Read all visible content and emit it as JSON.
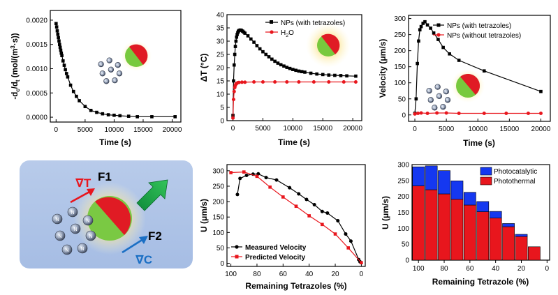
{
  "chart_data": [
    {
      "id": "rate",
      "type": "scatter",
      "title": "",
      "xlabel": "Time (s)",
      "ylabel": "-dc/dt (mol/(m³·s))",
      "ylabel_parts": {
        "prefix": "-d",
        "sub1": "c",
        "mid": "/d",
        "sub2": "t",
        "units": " (mol/(m",
        "sup": "3",
        "close": "·s))"
      },
      "xlim": [
        -1000,
        21500
      ],
      "ylim": [
        -0.0001,
        0.0022
      ],
      "xticks": [
        0,
        5000,
        10000,
        15000,
        20000
      ],
      "yticks": [
        0.0,
        0.0005,
        0.001,
        0.0015,
        0.002
      ],
      "ytick_labels": [
        "0.0000",
        "0.0005",
        "0.0010",
        "0.0015",
        "0.0020"
      ],
      "series": [
        {
          "name": "rate",
          "color": "#000000",
          "marker": "square",
          "x": [
            0,
            100,
            200,
            300,
            400,
            500,
            600,
            700,
            800,
            900,
            1000,
            1200,
            1400,
            1600,
            1800,
            2000,
            2500,
            3000,
            3500,
            4000,
            5000,
            6000,
            7000,
            8000,
            9000,
            10000,
            11000,
            12500,
            14000,
            16500,
            20500
          ],
          "y": [
            0.00193,
            0.00186,
            0.00178,
            0.00171,
            0.00164,
            0.00157,
            0.0015,
            0.00144,
            0.00138,
            0.00132,
            0.00127,
            0.00116,
            0.00107,
            0.00098,
            0.0009,
            0.00083,
            0.00066,
            0.00053,
            0.00043,
            0.00034,
            0.00022,
            0.00014,
            0.0001,
            7e-05,
            5e-05,
            4e-05,
            3e-05,
            2e-05,
            1e-05,
            1e-05,
            1e-05
          ]
        }
      ]
    },
    {
      "id": "temperature",
      "type": "scatter",
      "title": "",
      "xlabel": "Time (s)",
      "ylabel": "ΔT (°C)",
      "xlim": [
        -1000,
        21500
      ],
      "ylim": [
        0,
        40
      ],
      "xticks": [
        0,
        5000,
        10000,
        15000,
        20000
      ],
      "yticks": [
        0,
        5,
        10,
        15,
        20,
        25,
        30,
        35,
        40
      ],
      "legend_position": "top-right",
      "series": [
        {
          "name": "NPs (with tetrazoles)",
          "label": "NPs (with tetrazoles)",
          "color": "#000000",
          "marker": "square",
          "x": [
            0,
            100,
            200,
            300,
            400,
            500,
            600,
            700,
            800,
            900,
            1000,
            1200,
            1400,
            1600,
            1800,
            2000,
            2500,
            3000,
            3500,
            4000,
            4500,
            5000,
            5500,
            6000,
            6500,
            7000,
            7500,
            8000,
            8500,
            9000,
            9500,
            10000,
            10500,
            11000,
            11500,
            12000,
            13000,
            14000,
            15000,
            16000,
            17000,
            18000,
            19000,
            20500
          ],
          "y": [
            2,
            15,
            21,
            25,
            28,
            30,
            31.5,
            32.5,
            33.2,
            33.7,
            34,
            34.2,
            34.1,
            33.8,
            33.4,
            33,
            32,
            30.8,
            29.6,
            28.3,
            27.1,
            26,
            25,
            24.1,
            23.2,
            22.4,
            21.7,
            21.1,
            20.6,
            20.1,
            19.7,
            19.3,
            19,
            18.7,
            18.5,
            18.3,
            17.9,
            17.6,
            17.4,
            17.2,
            17.1,
            17,
            16.9,
            16.8
          ]
        },
        {
          "name": "H2O",
          "label_main": "H",
          "label_sub": "2",
          "label_rest": "O",
          "color": "#e8161d",
          "marker": "circle",
          "x": [
            0,
            100,
            200,
            300,
            400,
            500,
            600,
            800,
            1000,
            1500,
            2000,
            3500,
            5000,
            7000,
            9000,
            11000,
            13500,
            16000,
            18500,
            20500
          ],
          "y": [
            1,
            8,
            11,
            12.5,
            13.3,
            13.8,
            14,
            14.3,
            14.4,
            14.5,
            14.5,
            14.6,
            14.6,
            14.6,
            14.6,
            14.6,
            14.6,
            14.6,
            14.6,
            14.6
          ]
        }
      ]
    },
    {
      "id": "velocity",
      "type": "line",
      "title": "",
      "xlabel": "Time (s)",
      "ylabel": "Velocity (μm/s)",
      "xlim": [
        -1000,
        21500
      ],
      "ylim": [
        -20,
        310
      ],
      "xticks": [
        0,
        5000,
        10000,
        15000,
        20000
      ],
      "yticks": [
        0,
        50,
        100,
        150,
        200,
        250,
        300
      ],
      "legend_position": "top-right",
      "series": [
        {
          "name": "NPs (with tetrazoles)",
          "color": "#000000",
          "marker": "square",
          "x": [
            0,
            200,
            400,
            600,
            800,
            1000,
            1300,
            1600,
            2000,
            2500,
            3000,
            3700,
            4500,
            5500,
            7000,
            11000,
            20000
          ],
          "y": [
            5,
            50,
            160,
            230,
            265,
            275,
            285,
            290,
            280,
            270,
            255,
            235,
            210,
            190,
            170,
            137,
            73
          ]
        },
        {
          "name": "NPs (without tetrazoles)",
          "color": "#e8161d",
          "marker": "circle",
          "x": [
            0,
            500,
            1000,
            2000,
            3500,
            5000,
            7000,
            11000,
            14500,
            18000,
            20000
          ],
          "y": [
            3,
            5,
            6,
            5,
            6,
            6,
            5,
            5,
            5,
            5,
            5
          ]
        }
      ]
    },
    {
      "id": "u_vs_tetrazoles",
      "type": "line",
      "title": "",
      "xlabel": "Remaining Tetrazoles (%)",
      "ylabel": "U (μm/s)",
      "xlim": [
        103,
        -3
      ],
      "ylim": [
        -10,
        320
      ],
      "xticks": [
        100,
        80,
        60,
        40,
        20,
        0
      ],
      "yticks": [
        0,
        50,
        100,
        150,
        200,
        250,
        300
      ],
      "legend_position": "bottom-left",
      "series": [
        {
          "name": "Measured Velocity",
          "color": "#000000",
          "marker": "circle",
          "x": [
            95,
            93,
            88,
            83,
            79,
            73,
            65,
            55,
            48,
            42,
            36,
            30,
            26,
            18,
            12,
            8,
            2,
            1
          ],
          "y": [
            223,
            275,
            285,
            289,
            290,
            278,
            270,
            245,
            225,
            207,
            190,
            168,
            163,
            138,
            95,
            72,
            12,
            5
          ]
        },
        {
          "name": "Predicted Velocity",
          "color": "#e8161d",
          "marker": "square",
          "x": [
            100,
            90,
            80,
            70,
            60,
            50,
            40,
            30,
            20,
            10,
            0
          ],
          "y": [
            294,
            296,
            282,
            247,
            215,
            185,
            154,
            126,
            95,
            50,
            2
          ]
        }
      ]
    },
    {
      "id": "u_stacked",
      "type": "bar",
      "title": "",
      "xlabel": "Remaining Tetrazole (%)",
      "ylabel": "U (μm/s)",
      "xlim": [
        105,
        -2
      ],
      "ylim": [
        0,
        300
      ],
      "xticks": [
        100,
        80,
        60,
        40,
        20,
        0
      ],
      "yticks": [
        0,
        50,
        100,
        150,
        200,
        250,
        300
      ],
      "legend_position": "top-right",
      "categories": [
        100,
        90,
        80,
        70,
        60,
        50,
        40,
        30,
        20,
        10
      ],
      "series": [
        {
          "name": "Photothermal",
          "color": "#e8161d",
          "values": [
            233,
            221,
            208,
            191,
            173,
            152,
            132,
            105,
            74,
            42
          ]
        },
        {
          "name": "Photocatalytic",
          "color": "#1538f0",
          "values": [
            60,
            75,
            73,
            58,
            40,
            32,
            21,
            10,
            7,
            0
          ]
        }
      ]
    }
  ],
  "schematic": {
    "gradient_t": "∇T",
    "gradient_c": "∇C",
    "force_1": "F1",
    "force_2": "F2",
    "molecule_letter": "N"
  }
}
